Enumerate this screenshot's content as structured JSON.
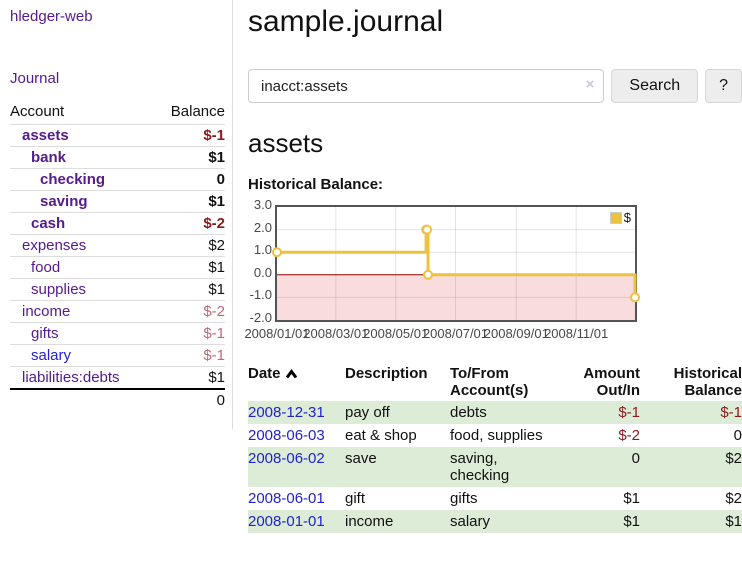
{
  "colors": {
    "purple": "#551a8b",
    "blue": "#2323cc",
    "dark_red": "#8b1a1a",
    "dim_red": "#c06a76",
    "row_green": "#dcecd7",
    "divider": "#dddddd",
    "input_border": "#cccccc",
    "button_bg": "#ededed",
    "button_border": "#d7d7d7",
    "clear_x": "#cfc3de"
  },
  "sidebar": {
    "brand": "hledger-web",
    "nav_journal": "Journal",
    "accounts_header": {
      "account": "Account",
      "balance": "Balance"
    },
    "accounts": [
      {
        "label": "assets",
        "indent": 1,
        "bold": true,
        "balance": "$-1",
        "amount_class": "neg",
        "link_class": ""
      },
      {
        "label": "bank",
        "indent": 2,
        "bold": true,
        "balance": "$1",
        "amount_class": "",
        "link_class": ""
      },
      {
        "label": "checking",
        "indent": 3,
        "bold": true,
        "balance": "0",
        "amount_class": "",
        "link_class": ""
      },
      {
        "label": "saving",
        "indent": 3,
        "bold": true,
        "balance": "$1",
        "amount_class": "",
        "link_class": ""
      },
      {
        "label": "cash",
        "indent": 2,
        "bold": true,
        "balance": "$-2",
        "amount_class": "neg",
        "link_class": ""
      },
      {
        "label": "expenses",
        "indent": 1,
        "bold": false,
        "balance": "$2",
        "amount_class": "",
        "link_class": ""
      },
      {
        "label": "food",
        "indent": 2,
        "bold": false,
        "balance": "$1",
        "amount_class": "",
        "link_class": ""
      },
      {
        "label": "supplies",
        "indent": 2,
        "bold": false,
        "balance": "$1",
        "amount_class": "",
        "link_class": ""
      },
      {
        "label": "income",
        "indent": 1,
        "bold": false,
        "balance": "$-2",
        "amount_class": "negdim",
        "link_class": ""
      },
      {
        "label": "gifts",
        "indent": 2,
        "bold": false,
        "balance": "$-1",
        "amount_class": "negdim",
        "link_class": ""
      },
      {
        "label": "salary",
        "indent": 2,
        "bold": false,
        "balance": "$-1",
        "amount_class": "negdim",
        "link_class": "blue"
      },
      {
        "label": "liabilities:debts",
        "indent": 1,
        "bold": false,
        "balance": "$1",
        "amount_class": "",
        "link_class": ""
      }
    ],
    "total": "0"
  },
  "main": {
    "title": "sample.journal",
    "search": {
      "value": "inacct:assets",
      "clear_icon": "×",
      "button": "Search",
      "help_button": "?"
    },
    "account_heading": "assets",
    "chart_heading": "Historical Balance:"
  },
  "chart_data": {
    "type": "line",
    "title": "Historical Balance",
    "step": true,
    "series": [
      {
        "name": "$",
        "points": [
          [
            "2008/01/01",
            1.0
          ],
          [
            "2008/06/01",
            2.0
          ],
          [
            "2008/06/02",
            2.0
          ],
          [
            "2008/06/03",
            0.0
          ],
          [
            "2008/12/31",
            -1.0
          ]
        ]
      }
    ],
    "xlim": [
      "2008/01/01",
      "2008/12/31"
    ],
    "ylim": [
      -2.0,
      3.0
    ],
    "x_ticks": [
      "2008/01/01",
      "2008/03/01",
      "2008/05/01",
      "2008/07/01",
      "2008/09/01",
      "2008/11/01"
    ],
    "y_ticks": [
      3.0,
      2.0,
      1.0,
      0.0,
      -1.0,
      -2.0
    ],
    "legend": "$",
    "legend_position": "top-right",
    "grid": true,
    "colors": {
      "line": "#edc240",
      "marker_fill": "#ffffff",
      "negative_region": "#f9dcdc",
      "zero_line": "#8b0000",
      "grid": "rgba(84,84,84,0.16)",
      "border": "#545454",
      "label": "#474747"
    }
  },
  "register": {
    "headers": [
      "Date",
      "Description",
      "To/From Account(s)",
      "Amount Out/In",
      "Historical Balance"
    ],
    "rows": [
      {
        "date": "2008-12-31",
        "description": "pay off",
        "accounts": "debts",
        "amount": "$-1",
        "amount_class": "neg",
        "balance": "$-1",
        "balance_class": "neg",
        "shaded": true
      },
      {
        "date": "2008-06-03",
        "description": "eat & shop",
        "accounts": "food, supplies",
        "amount": "$-2",
        "amount_class": "neg",
        "balance": "0",
        "balance_class": "",
        "shaded": false
      },
      {
        "date": "2008-06-02",
        "description": "save",
        "accounts": "saving, checking",
        "amount": "0",
        "amount_class": "",
        "balance": "$2",
        "balance_class": "",
        "shaded": true
      },
      {
        "date": "2008-06-01",
        "description": "gift",
        "accounts": "gifts",
        "amount": "$1",
        "amount_class": "",
        "balance": "$2",
        "balance_class": "",
        "shaded": false
      },
      {
        "date": "2008-01-01",
        "description": "income",
        "accounts": "salary",
        "amount": "$1",
        "amount_class": "",
        "balance": "$1",
        "balance_class": "",
        "shaded": true
      }
    ]
  }
}
